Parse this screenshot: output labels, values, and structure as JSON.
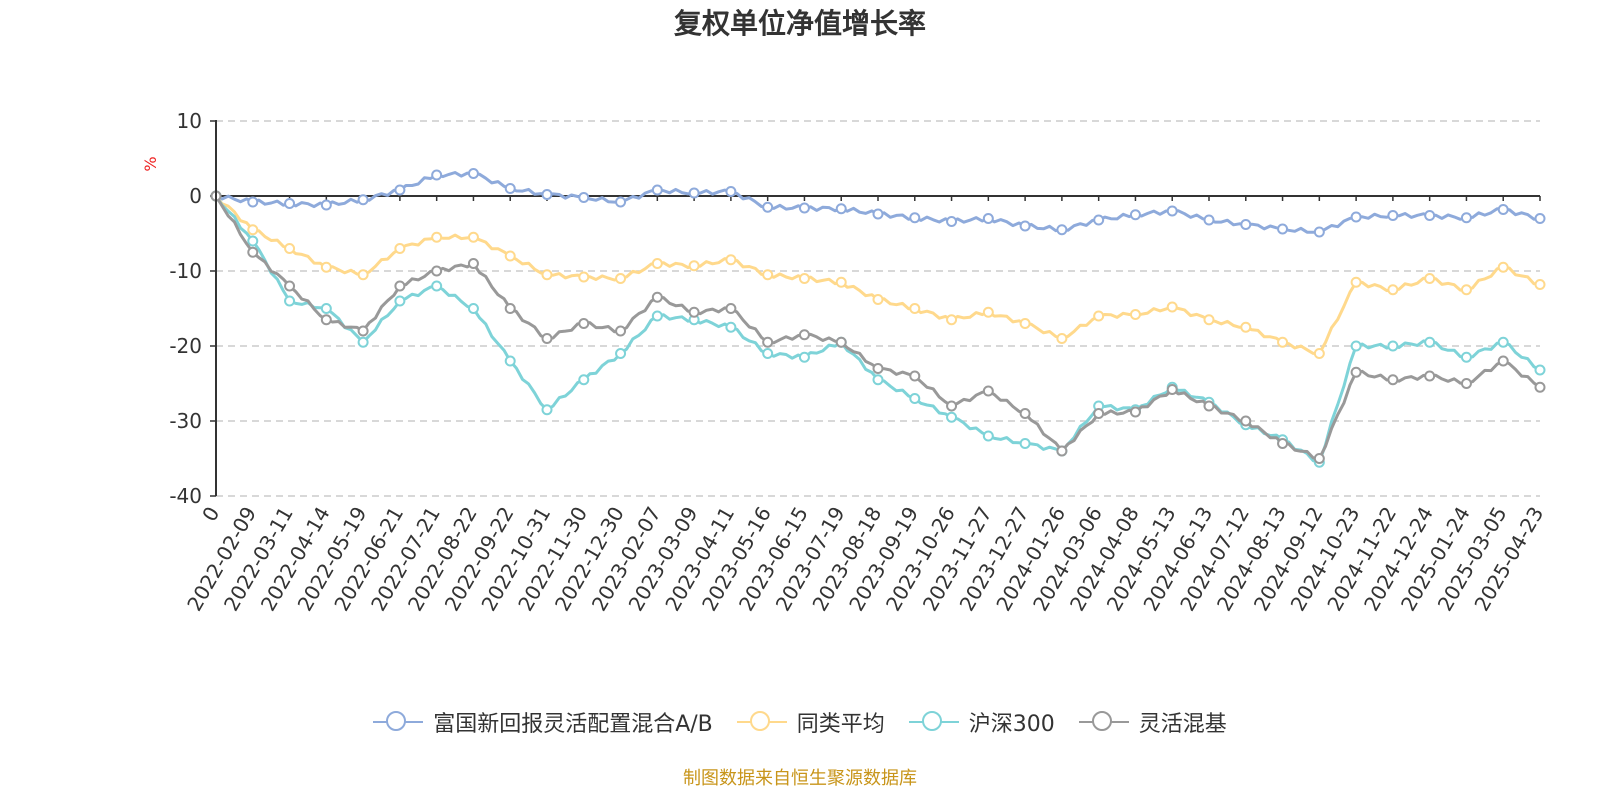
{
  "title": "复权单位净值增长率",
  "source": "制图数据来自恒生聚源数据库",
  "chart_data": {
    "type": "line",
    "title": "复权单位净值增长率",
    "ylabel": "%",
    "ylim": [
      -40,
      10
    ],
    "yticks": [
      "10",
      "0",
      "-10",
      "-20",
      "-30",
      "-40"
    ],
    "x_tick_labels": [
      "0",
      "2022-02-09",
      "2022-03-11",
      "2022-04-14",
      "2022-05-19",
      "2022-06-21",
      "2022-07-21",
      "2022-08-22",
      "2022-09-22",
      "2022-10-31",
      "2022-11-30",
      "2022-12-30",
      "2023-02-07",
      "2023-03-09",
      "2023-04-11",
      "2023-05-16",
      "2023-06-15",
      "2023-07-19",
      "2023-08-18",
      "2023-09-19",
      "2023-10-26",
      "2023-11-27",
      "2023-12-27",
      "2024-01-26",
      "2024-03-06",
      "2024-04-08",
      "2024-05-13",
      "2024-06-13",
      "2024-07-12",
      "2024-08-13",
      "2024-09-12",
      "2024-10-23",
      "2024-11-22",
      "2024-12-24",
      "2025-01-24",
      "2025-03-05",
      "2025-04-23"
    ],
    "grid": "horizontal-dashed",
    "legend_position": "bottom-center",
    "series": [
      {
        "name": "富国新回报灵活配置混合A/B",
        "color": "#8eaadb",
        "values": [
          0,
          -0.8,
          -1.0,
          -1.2,
          -0.5,
          0.8,
          2.8,
          3.0,
          1.0,
          0.2,
          -0.2,
          -0.8,
          0.8,
          0.4,
          0.6,
          -1.5,
          -1.6,
          -1.7,
          -2.4,
          -2.9,
          -3.4,
          -3.0,
          -4.0,
          -4.5,
          -3.2,
          -2.5,
          -2.0,
          -3.2,
          -3.8,
          -4.4,
          -4.8,
          -2.8,
          -2.6,
          -2.6,
          -2.9,
          -1.8,
          -3.0
        ]
      },
      {
        "name": "同类平均",
        "color": "#ffd98c",
        "values": [
          0,
          -4.5,
          -7.0,
          -9.5,
          -10.5,
          -7.0,
          -5.5,
          -5.5,
          -8.0,
          -10.5,
          -10.8,
          -11.0,
          -9.0,
          -9.3,
          -8.5,
          -10.5,
          -11.0,
          -11.5,
          -13.8,
          -15.0,
          -16.5,
          -15.5,
          -17.0,
          -19.0,
          -16.0,
          -15.8,
          -14.8,
          -16.5,
          -17.5,
          -19.5,
          -21.0,
          -11.5,
          -12.5,
          -11.0,
          -12.5,
          -9.5,
          -11.8
        ]
      },
      {
        "name": "沪深300",
        "color": "#7ed3d8",
        "values": [
          0,
          -6.0,
          -14.0,
          -15.0,
          -19.5,
          -14.0,
          -12.0,
          -15.0,
          -22.0,
          -28.5,
          -24.5,
          -21.0,
          -16.0,
          -16.5,
          -17.5,
          -21.0,
          -21.5,
          -19.5,
          -24.5,
          -27.0,
          -29.5,
          -32.0,
          -33.0,
          -34.0,
          -28.0,
          -28.5,
          -25.5,
          -27.5,
          -30.5,
          -32.5,
          -35.5,
          -20.0,
          -20.0,
          -19.5,
          -21.5,
          -19.5,
          -23.2
        ]
      },
      {
        "name": "灵活混基",
        "color": "#999999",
        "values": [
          0,
          -7.5,
          -12.0,
          -16.5,
          -18.0,
          -12.0,
          -10.0,
          -9.0,
          -15.0,
          -19.0,
          -17.0,
          -18.0,
          -13.5,
          -15.5,
          -15.0,
          -19.5,
          -18.5,
          -19.5,
          -23.0,
          -24.0,
          -28.0,
          -26.0,
          -29.0,
          -34.0,
          -29.0,
          -28.8,
          -25.8,
          -28.0,
          -30.0,
          -33.0,
          -35.0,
          -23.5,
          -24.5,
          -24.0,
          -25.0,
          -22.0,
          -25.5
        ]
      }
    ]
  }
}
